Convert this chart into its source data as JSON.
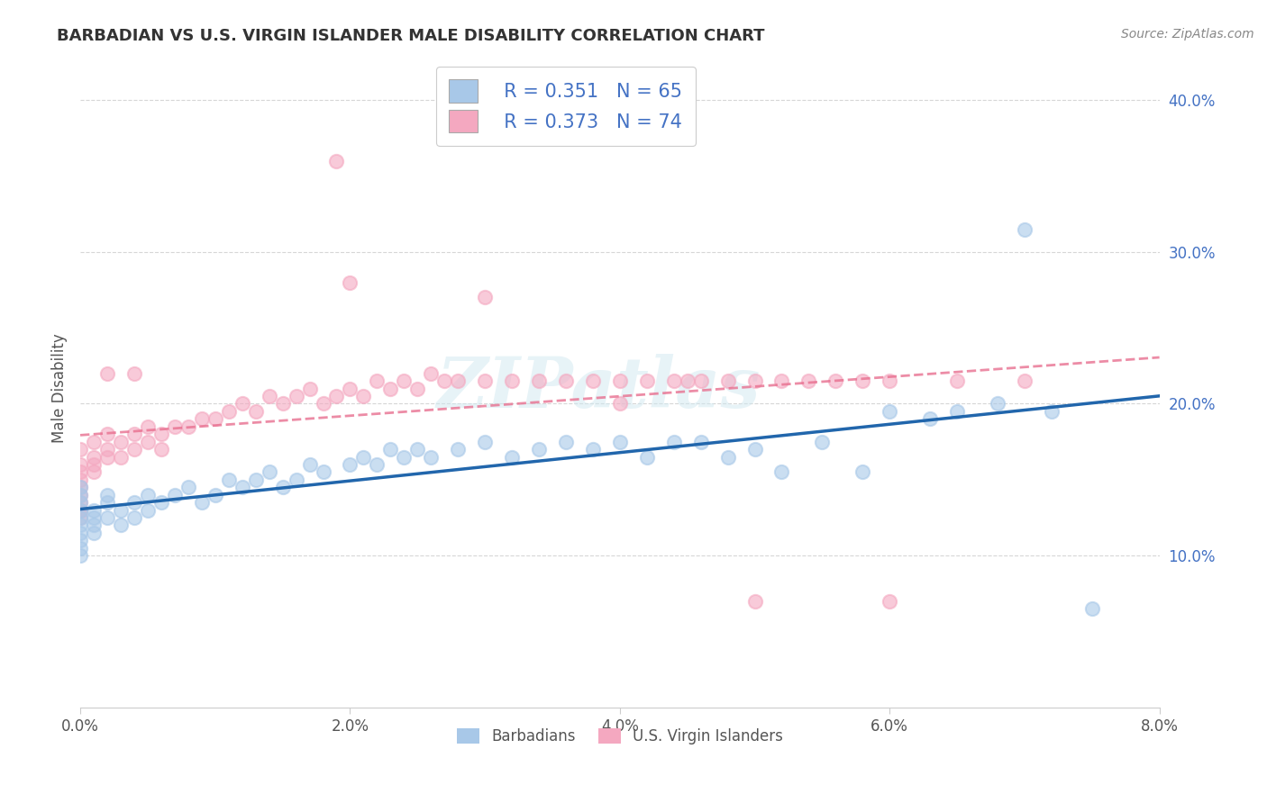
{
  "title": "BARBADIAN VS U.S. VIRGIN ISLANDER MALE DISABILITY CORRELATION CHART",
  "source": "Source: ZipAtlas.com",
  "ylabel": "Male Disability",
  "xlim": [
    0.0,
    0.08
  ],
  "ylim": [
    0.0,
    0.42
  ],
  "xtick_labels": [
    "0.0%",
    "2.0%",
    "4.0%",
    "6.0%",
    "8.0%"
  ],
  "xtick_vals": [
    0.0,
    0.02,
    0.04,
    0.06,
    0.08
  ],
  "ytick_labels": [
    "10.0%",
    "20.0%",
    "30.0%",
    "40.0%"
  ],
  "ytick_vals": [
    0.1,
    0.2,
    0.3,
    0.4
  ],
  "blue_color": "#A8C8E8",
  "pink_color": "#F4A8C0",
  "blue_line_color": "#2166ac",
  "pink_line_color": "#E87090",
  "R_blue": "0.351",
  "N_blue": "65",
  "R_pink": "0.373",
  "N_pink": "74",
  "legend_label_blue": "Barbadians",
  "legend_label_pink": "U.S. Virgin Islanders",
  "watermark": "ZIPatlas",
  "blue_scatter_x": [
    0.0,
    0.0,
    0.0,
    0.0,
    0.0,
    0.0,
    0.0,
    0.0,
    0.0,
    0.0,
    0.001,
    0.001,
    0.001,
    0.001,
    0.002,
    0.002,
    0.002,
    0.003,
    0.003,
    0.004,
    0.004,
    0.005,
    0.005,
    0.006,
    0.007,
    0.008,
    0.009,
    0.01,
    0.011,
    0.012,
    0.013,
    0.014,
    0.015,
    0.016,
    0.017,
    0.018,
    0.02,
    0.021,
    0.022,
    0.023,
    0.024,
    0.025,
    0.026,
    0.028,
    0.03,
    0.032,
    0.034,
    0.036,
    0.038,
    0.04,
    0.042,
    0.044,
    0.046,
    0.048,
    0.05,
    0.052,
    0.055,
    0.058,
    0.06,
    0.063,
    0.065,
    0.068,
    0.07,
    0.072,
    0.075
  ],
  "blue_scatter_y": [
    0.125,
    0.13,
    0.135,
    0.12,
    0.115,
    0.11,
    0.14,
    0.145,
    0.105,
    0.1,
    0.13,
    0.125,
    0.115,
    0.12,
    0.135,
    0.125,
    0.14,
    0.13,
    0.12,
    0.135,
    0.125,
    0.14,
    0.13,
    0.135,
    0.14,
    0.145,
    0.135,
    0.14,
    0.15,
    0.145,
    0.15,
    0.155,
    0.145,
    0.15,
    0.16,
    0.155,
    0.16,
    0.165,
    0.16,
    0.17,
    0.165,
    0.17,
    0.165,
    0.17,
    0.175,
    0.165,
    0.17,
    0.175,
    0.17,
    0.175,
    0.165,
    0.175,
    0.175,
    0.165,
    0.17,
    0.155,
    0.175,
    0.155,
    0.195,
    0.19,
    0.195,
    0.2,
    0.315,
    0.195,
    0.065
  ],
  "pink_scatter_x": [
    0.0,
    0.0,
    0.0,
    0.0,
    0.0,
    0.0,
    0.0,
    0.0,
    0.0,
    0.0,
    0.001,
    0.001,
    0.001,
    0.001,
    0.002,
    0.002,
    0.002,
    0.003,
    0.003,
    0.004,
    0.004,
    0.005,
    0.005,
    0.006,
    0.006,
    0.007,
    0.008,
    0.009,
    0.01,
    0.011,
    0.012,
    0.013,
    0.014,
    0.015,
    0.016,
    0.017,
    0.018,
    0.019,
    0.02,
    0.021,
    0.022,
    0.023,
    0.024,
    0.025,
    0.026,
    0.027,
    0.028,
    0.03,
    0.032,
    0.034,
    0.036,
    0.038,
    0.04,
    0.042,
    0.044,
    0.046,
    0.048,
    0.05,
    0.052,
    0.054,
    0.056,
    0.058,
    0.06,
    0.065,
    0.07,
    0.045,
    0.019,
    0.02,
    0.03,
    0.04,
    0.05,
    0.06,
    0.002,
    0.004
  ],
  "pink_scatter_y": [
    0.13,
    0.135,
    0.14,
    0.125,
    0.145,
    0.15,
    0.155,
    0.13,
    0.16,
    0.17,
    0.165,
    0.175,
    0.155,
    0.16,
    0.17,
    0.165,
    0.18,
    0.175,
    0.165,
    0.17,
    0.18,
    0.175,
    0.185,
    0.17,
    0.18,
    0.185,
    0.185,
    0.19,
    0.19,
    0.195,
    0.2,
    0.195,
    0.205,
    0.2,
    0.205,
    0.21,
    0.2,
    0.205,
    0.21,
    0.205,
    0.215,
    0.21,
    0.215,
    0.21,
    0.22,
    0.215,
    0.215,
    0.215,
    0.215,
    0.215,
    0.215,
    0.215,
    0.215,
    0.215,
    0.215,
    0.215,
    0.215,
    0.215,
    0.215,
    0.215,
    0.215,
    0.215,
    0.215,
    0.215,
    0.215,
    0.215,
    0.36,
    0.28,
    0.27,
    0.2,
    0.07,
    0.07,
    0.22,
    0.22
  ]
}
